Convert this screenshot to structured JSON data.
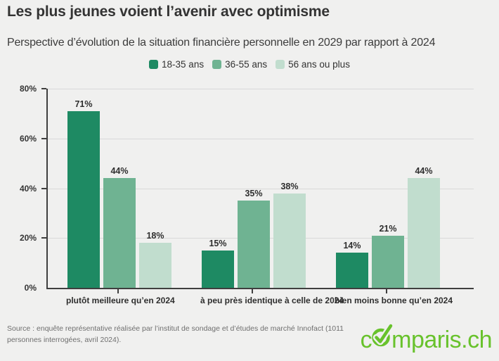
{
  "chart_data": {
    "type": "bar",
    "title": "Les plus jeunes voient l’avenir avec optimisme",
    "subtitle": "Perspective d’évolution de la situation financière personnelle en 2029 par rapport à 2024",
    "categories": [
      "plutôt meilleure qu’en 2024",
      "à peu près identique à celle de 2024",
      "bien moins bonne qu’en 2024"
    ],
    "series": [
      {
        "name": "18-35 ans",
        "color": "#1e8a63",
        "values": [
          71,
          15,
          14
        ]
      },
      {
        "name": "36-55 ans",
        "color": "#6fb392",
        "values": [
          44,
          35,
          21
        ]
      },
      {
        "name": "56 ans ou plus",
        "color": "#c1ddce",
        "values": [
          18,
          38,
          44
        ]
      }
    ],
    "ylim": [
      0,
      80
    ],
    "yticks": [
      0,
      20,
      40,
      60,
      80
    ],
    "ytick_suffix": "%",
    "value_suffix": "%",
    "grid": true,
    "legend_position": "top"
  },
  "source": {
    "text": "Source : enquête représentative réalisée par l’institut de sondage et d’études de marché Innofact (1011 personnes interrogées, avril 2024)."
  },
  "logo": {
    "text": "comparis.ch",
    "color": "#68c22c"
  },
  "style_colors": {
    "background": "#f0f0ef",
    "axis": "#3f3f3f",
    "gridline": "#d9d9d9",
    "title_text": "#333333",
    "source_text": "#6f6f6f"
  }
}
